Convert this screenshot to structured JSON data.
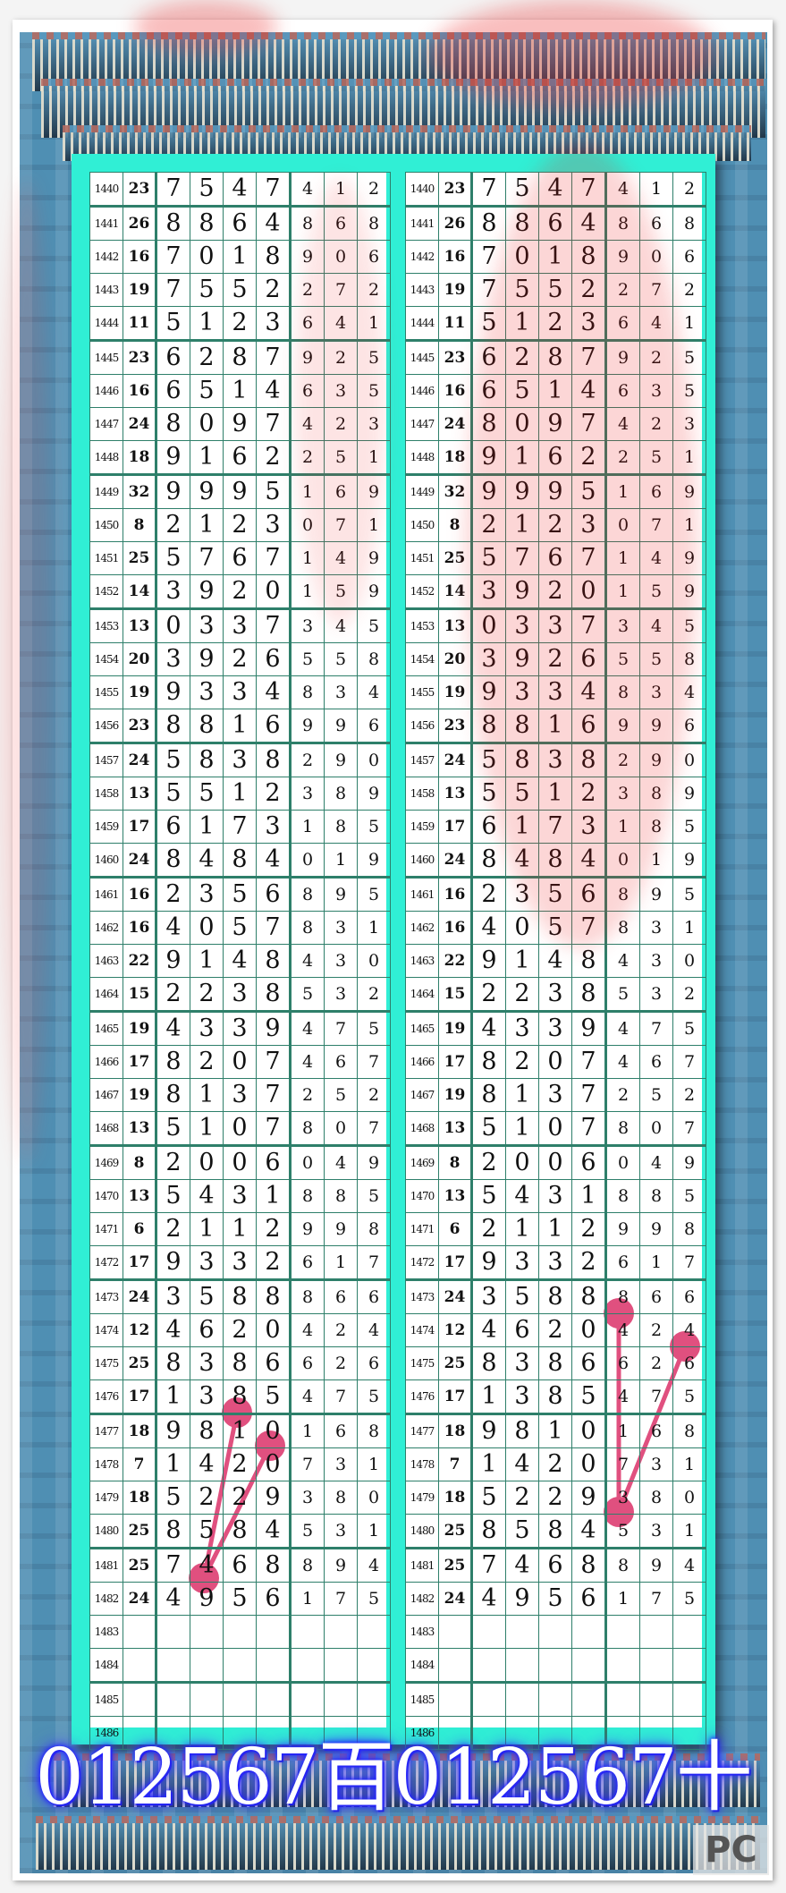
{
  "rows": [
    [
      1440,
      23,
      7,
      5,
      4,
      7,
      4,
      1,
      2
    ],
    [
      1441,
      26,
      8,
      8,
      6,
      4,
      8,
      6,
      8
    ],
    [
      1442,
      16,
      7,
      0,
      1,
      8,
      9,
      0,
      6
    ],
    [
      1443,
      19,
      7,
      5,
      5,
      2,
      2,
      7,
      2
    ],
    [
      1444,
      11,
      5,
      1,
      2,
      3,
      6,
      4,
      1
    ],
    [
      1445,
      23,
      6,
      2,
      8,
      7,
      9,
      2,
      5
    ],
    [
      1446,
      16,
      6,
      5,
      1,
      4,
      6,
      3,
      5
    ],
    [
      1447,
      24,
      8,
      0,
      9,
      7,
      4,
      2,
      3
    ],
    [
      1448,
      18,
      9,
      1,
      6,
      2,
      2,
      5,
      1
    ],
    [
      1449,
      32,
      9,
      9,
      9,
      5,
      1,
      6,
      9
    ],
    [
      1450,
      8,
      2,
      1,
      2,
      3,
      0,
      7,
      1
    ],
    [
      1451,
      25,
      5,
      7,
      6,
      7,
      1,
      4,
      9
    ],
    [
      1452,
      14,
      3,
      9,
      2,
      0,
      1,
      5,
      9
    ],
    [
      1453,
      13,
      0,
      3,
      3,
      7,
      3,
      4,
      5
    ],
    [
      1454,
      20,
      3,
      9,
      2,
      6,
      5,
      5,
      8
    ],
    [
      1455,
      19,
      9,
      3,
      3,
      4,
      8,
      3,
      4
    ],
    [
      1456,
      23,
      8,
      8,
      1,
      6,
      9,
      9,
      6
    ],
    [
      1457,
      24,
      5,
      8,
      3,
      8,
      2,
      9,
      0
    ],
    [
      1458,
      13,
      5,
      5,
      1,
      2,
      3,
      8,
      9
    ],
    [
      1459,
      17,
      6,
      1,
      7,
      3,
      1,
      8,
      5
    ],
    [
      1460,
      24,
      8,
      4,
      8,
      4,
      0,
      1,
      9
    ],
    [
      1461,
      16,
      2,
      3,
      5,
      6,
      8,
      9,
      5
    ],
    [
      1462,
      16,
      4,
      0,
      5,
      7,
      8,
      3,
      1
    ],
    [
      1463,
      22,
      9,
      1,
      4,
      8,
      4,
      3,
      0
    ],
    [
      1464,
      15,
      2,
      2,
      3,
      8,
      5,
      3,
      2
    ],
    [
      1465,
      19,
      4,
      3,
      3,
      9,
      4,
      7,
      5
    ],
    [
      1466,
      17,
      8,
      2,
      0,
      7,
      4,
      6,
      7
    ],
    [
      1467,
      19,
      8,
      1,
      3,
      7,
      2,
      5,
      2
    ],
    [
      1468,
      13,
      5,
      1,
      0,
      7,
      8,
      0,
      7
    ],
    [
      1469,
      8,
      2,
      0,
      0,
      6,
      0,
      4,
      9
    ],
    [
      1470,
      13,
      5,
      4,
      3,
      1,
      8,
      8,
      5
    ],
    [
      1471,
      6,
      2,
      1,
      1,
      2,
      9,
      9,
      8
    ],
    [
      1472,
      17,
      9,
      3,
      3,
      2,
      6,
      1,
      7
    ],
    [
      1473,
      24,
      3,
      5,
      8,
      8,
      8,
      6,
      6
    ],
    [
      1474,
      12,
      4,
      6,
      2,
      0,
      4,
      2,
      4
    ],
    [
      1475,
      25,
      8,
      3,
      8,
      6,
      6,
      2,
      6
    ],
    [
      1476,
      17,
      1,
      3,
      8,
      5,
      4,
      7,
      5
    ],
    [
      1477,
      18,
      9,
      8,
      1,
      0,
      1,
      6,
      8
    ],
    [
      1478,
      7,
      1,
      4,
      2,
      0,
      7,
      3,
      1
    ],
    [
      1479,
      18,
      5,
      2,
      2,
      9,
      3,
      8,
      0
    ],
    [
      1480,
      25,
      8,
      5,
      8,
      4,
      5,
      3,
      1
    ],
    [
      1481,
      25,
      7,
      4,
      6,
      8,
      8,
      9,
      4
    ],
    [
      1482,
      24,
      4,
      9,
      5,
      6,
      1,
      7,
      5
    ],
    [
      1483
    ],
    [
      1484
    ],
    [
      1485
    ],
    [
      1486
    ]
  ],
  "marks": {
    "left": [
      {
        "period": 1477,
        "digit": 3
      },
      {
        "period": 1478,
        "digit": 4
      },
      {
        "period": 1482,
        "digit": 2
      }
    ],
    "right": [
      {
        "period": 1474,
        "digit": 5
      },
      {
        "period": 1475,
        "digit": 7
      },
      {
        "period": 1480,
        "digit": 5
      }
    ]
  },
  "links": {
    "left": [
      [
        0,
        2
      ],
      [
        1,
        2
      ]
    ],
    "right": [
      [
        0,
        2
      ],
      [
        1,
        2
      ]
    ]
  },
  "banner": "012567百012567十",
  "watermark": "PC",
  "colors": {
    "mark": "#e0507f",
    "border": "#2e7f6a",
    "teal": "#30efd5",
    "frame": "#4f8fb3",
    "banner_glow": "#2222ff"
  }
}
